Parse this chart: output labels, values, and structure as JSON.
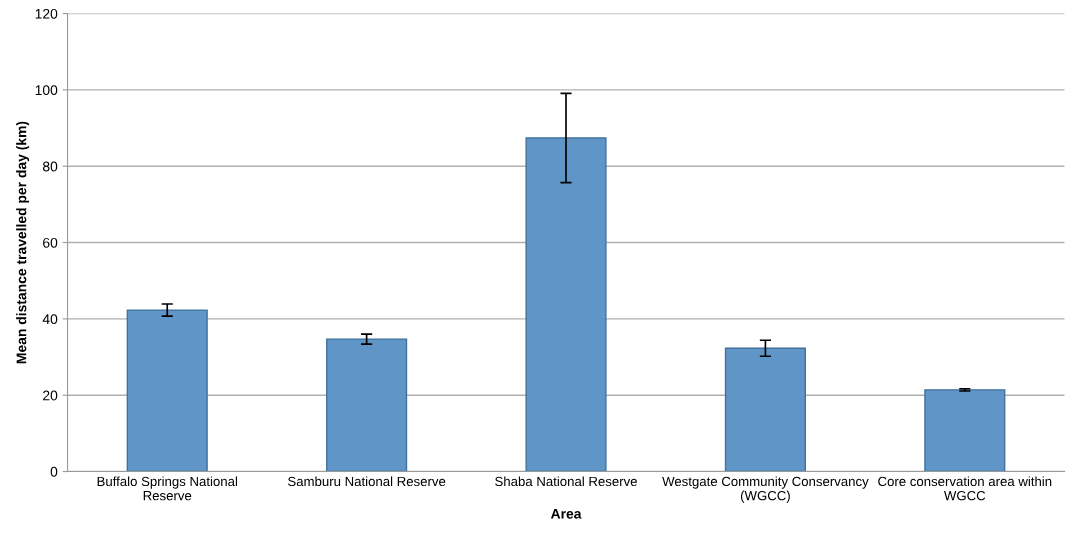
{
  "chart_data": {
    "type": "bar",
    "xlabel": "Area",
    "ylabel": "Mean distance travelled per day (km)",
    "categories": [
      "Buffalo Springs National Reserve",
      "Samburu National Reserve",
      "Shaba National Reserve",
      "Westgate Community Conservancy (WGCC)",
      "Core conservation area within WGCC"
    ],
    "values": [
      42.3,
      34.7,
      87.4,
      32.3,
      21.4
    ],
    "errors": [
      1.6,
      1.3,
      11.7,
      2.1,
      0.3
    ],
    "color": "#5f95c7",
    "ylim": [
      0,
      120
    ],
    "yticks": [
      0,
      20,
      40,
      60,
      80,
      100,
      120
    ],
    "grid": "y"
  }
}
